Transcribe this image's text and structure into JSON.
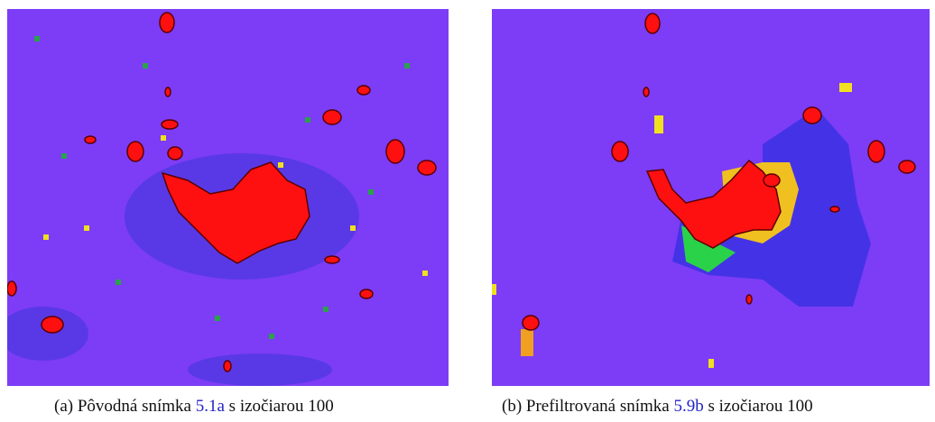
{
  "figures": [
    {
      "label": "(a)",
      "text_before": "Pôvodná snímka",
      "ref": "5.1a",
      "text_after": "s izočiarou 100"
    },
    {
      "label": "(b)",
      "text_before": "Prefiltrovaná snímka",
      "ref": "5.9b",
      "text_after": "s izočiarou 100"
    }
  ]
}
